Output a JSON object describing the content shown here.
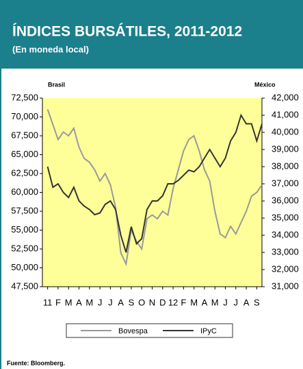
{
  "chart_data": {
    "type": "line",
    "title": "ÍNDICES BURSÁTILES,  2011-2012",
    "subtitle": "(En moneda local)",
    "y_label": "Brasil",
    "y2_label": "México",
    "source": "Fuente:   Bloomberg.",
    "xlim": [
      -0.5,
      20.5
    ],
    "xticks": [
      {
        "value": 0,
        "label": "11"
      },
      {
        "value": 1,
        "label": "F"
      },
      {
        "value": 2,
        "label": "M"
      },
      {
        "value": 3,
        "label": "A"
      },
      {
        "value": 4,
        "label": "M"
      },
      {
        "value": 5,
        "label": "J"
      },
      {
        "value": 6,
        "label": "J"
      },
      {
        "value": 7,
        "label": "A"
      },
      {
        "value": 8,
        "label": "S"
      },
      {
        "value": 9,
        "label": "O"
      },
      {
        "value": 10,
        "label": "N"
      },
      {
        "value": 11,
        "label": "D"
      },
      {
        "value": 12,
        "label": "12"
      },
      {
        "value": 13,
        "label": "F"
      },
      {
        "value": 14,
        "label": "M"
      },
      {
        "value": 15,
        "label": "A"
      },
      {
        "value": 16,
        "label": "M"
      },
      {
        "value": 17,
        "label": "J"
      },
      {
        "value": 18,
        "label": "J"
      },
      {
        "value": 19,
        "label": "A"
      },
      {
        "value": 20,
        "label": "S"
      }
    ],
    "ylim": [
      47500,
      72500
    ],
    "yticks": [
      {
        "value": 47500,
        "label": "47,500"
      },
      {
        "value": 50000,
        "label": "50,000"
      },
      {
        "value": 52500,
        "label": "52,500"
      },
      {
        "value": 55000,
        "label": "55,000"
      },
      {
        "value": 57500,
        "label": "57,500"
      },
      {
        "value": 60000,
        "label": "60,000"
      },
      {
        "value": 62500,
        "label": "62,500"
      },
      {
        "value": 65000,
        "label": "65,000"
      },
      {
        "value": 67500,
        "label": "67,500"
      },
      {
        "value": 70000,
        "label": "70,000"
      },
      {
        "value": 72500,
        "label": "72,500"
      }
    ],
    "y2lim": [
      31000,
      42000
    ],
    "y2ticks": [
      {
        "value": 31000,
        "label": "31,000"
      },
      {
        "value": 32000,
        "label": "32,000"
      },
      {
        "value": 33000,
        "label": "33,000"
      },
      {
        "value": 34000,
        "label": "34,000"
      },
      {
        "value": 35000,
        "label": "35,000"
      },
      {
        "value": 36000,
        "label": "36,000"
      },
      {
        "value": 37000,
        "label": "37,000"
      },
      {
        "value": 38000,
        "label": "38,000"
      },
      {
        "value": 39000,
        "label": "39,000"
      },
      {
        "value": 40000,
        "label": "40,000"
      },
      {
        "value": 41000,
        "label": "41,000"
      },
      {
        "value": 42000,
        "label": "42,000"
      }
    ],
    "x": [
      0,
      0.5,
      1,
      1.5,
      2,
      2.5,
      3,
      3.5,
      4,
      4.5,
      5,
      5.5,
      6,
      6.5,
      7,
      7.5,
      8,
      8.5,
      9,
      9.5,
      10,
      10.5,
      11,
      11.5,
      12,
      12.5,
      13,
      13.5,
      14,
      14.5,
      15,
      15.5,
      16,
      16.5,
      17,
      17.5,
      18,
      18.5,
      19,
      19.5,
      20,
      20.5
    ],
    "series": [
      {
        "name": "Bovespa",
        "color": "#999999",
        "values": [
          71000,
          69000,
          67000,
          68000,
          67500,
          68500,
          66000,
          64500,
          64000,
          63000,
          61500,
          62500,
          61000,
          58000,
          52000,
          50500,
          55000,
          53500,
          52500,
          56500,
          57000,
          56500,
          57500,
          57000,
          60500,
          63000,
          65500,
          67000,
          67500,
          65500,
          63000,
          61500,
          57500,
          54500,
          54000,
          55500,
          54500,
          56000,
          57500,
          59500,
          60000,
          61000
        ]
      },
      {
        "name": "IPyC",
        "color": "#333333",
        "axis": "y2",
        "values": [
          38000,
          36800,
          37000,
          36500,
          36200,
          36800,
          36000,
          35700,
          35500,
          35200,
          35300,
          35800,
          36000,
          35500,
          34000,
          33000,
          34500,
          33500,
          33800,
          35500,
          36000,
          36000,
          36300,
          37000,
          37000,
          37200,
          37500,
          37800,
          37700,
          38000,
          38500,
          39000,
          38500,
          38000,
          38500,
          39500,
          40000,
          41000,
          40500,
          40500,
          39500,
          40500
        ]
      }
    ]
  }
}
